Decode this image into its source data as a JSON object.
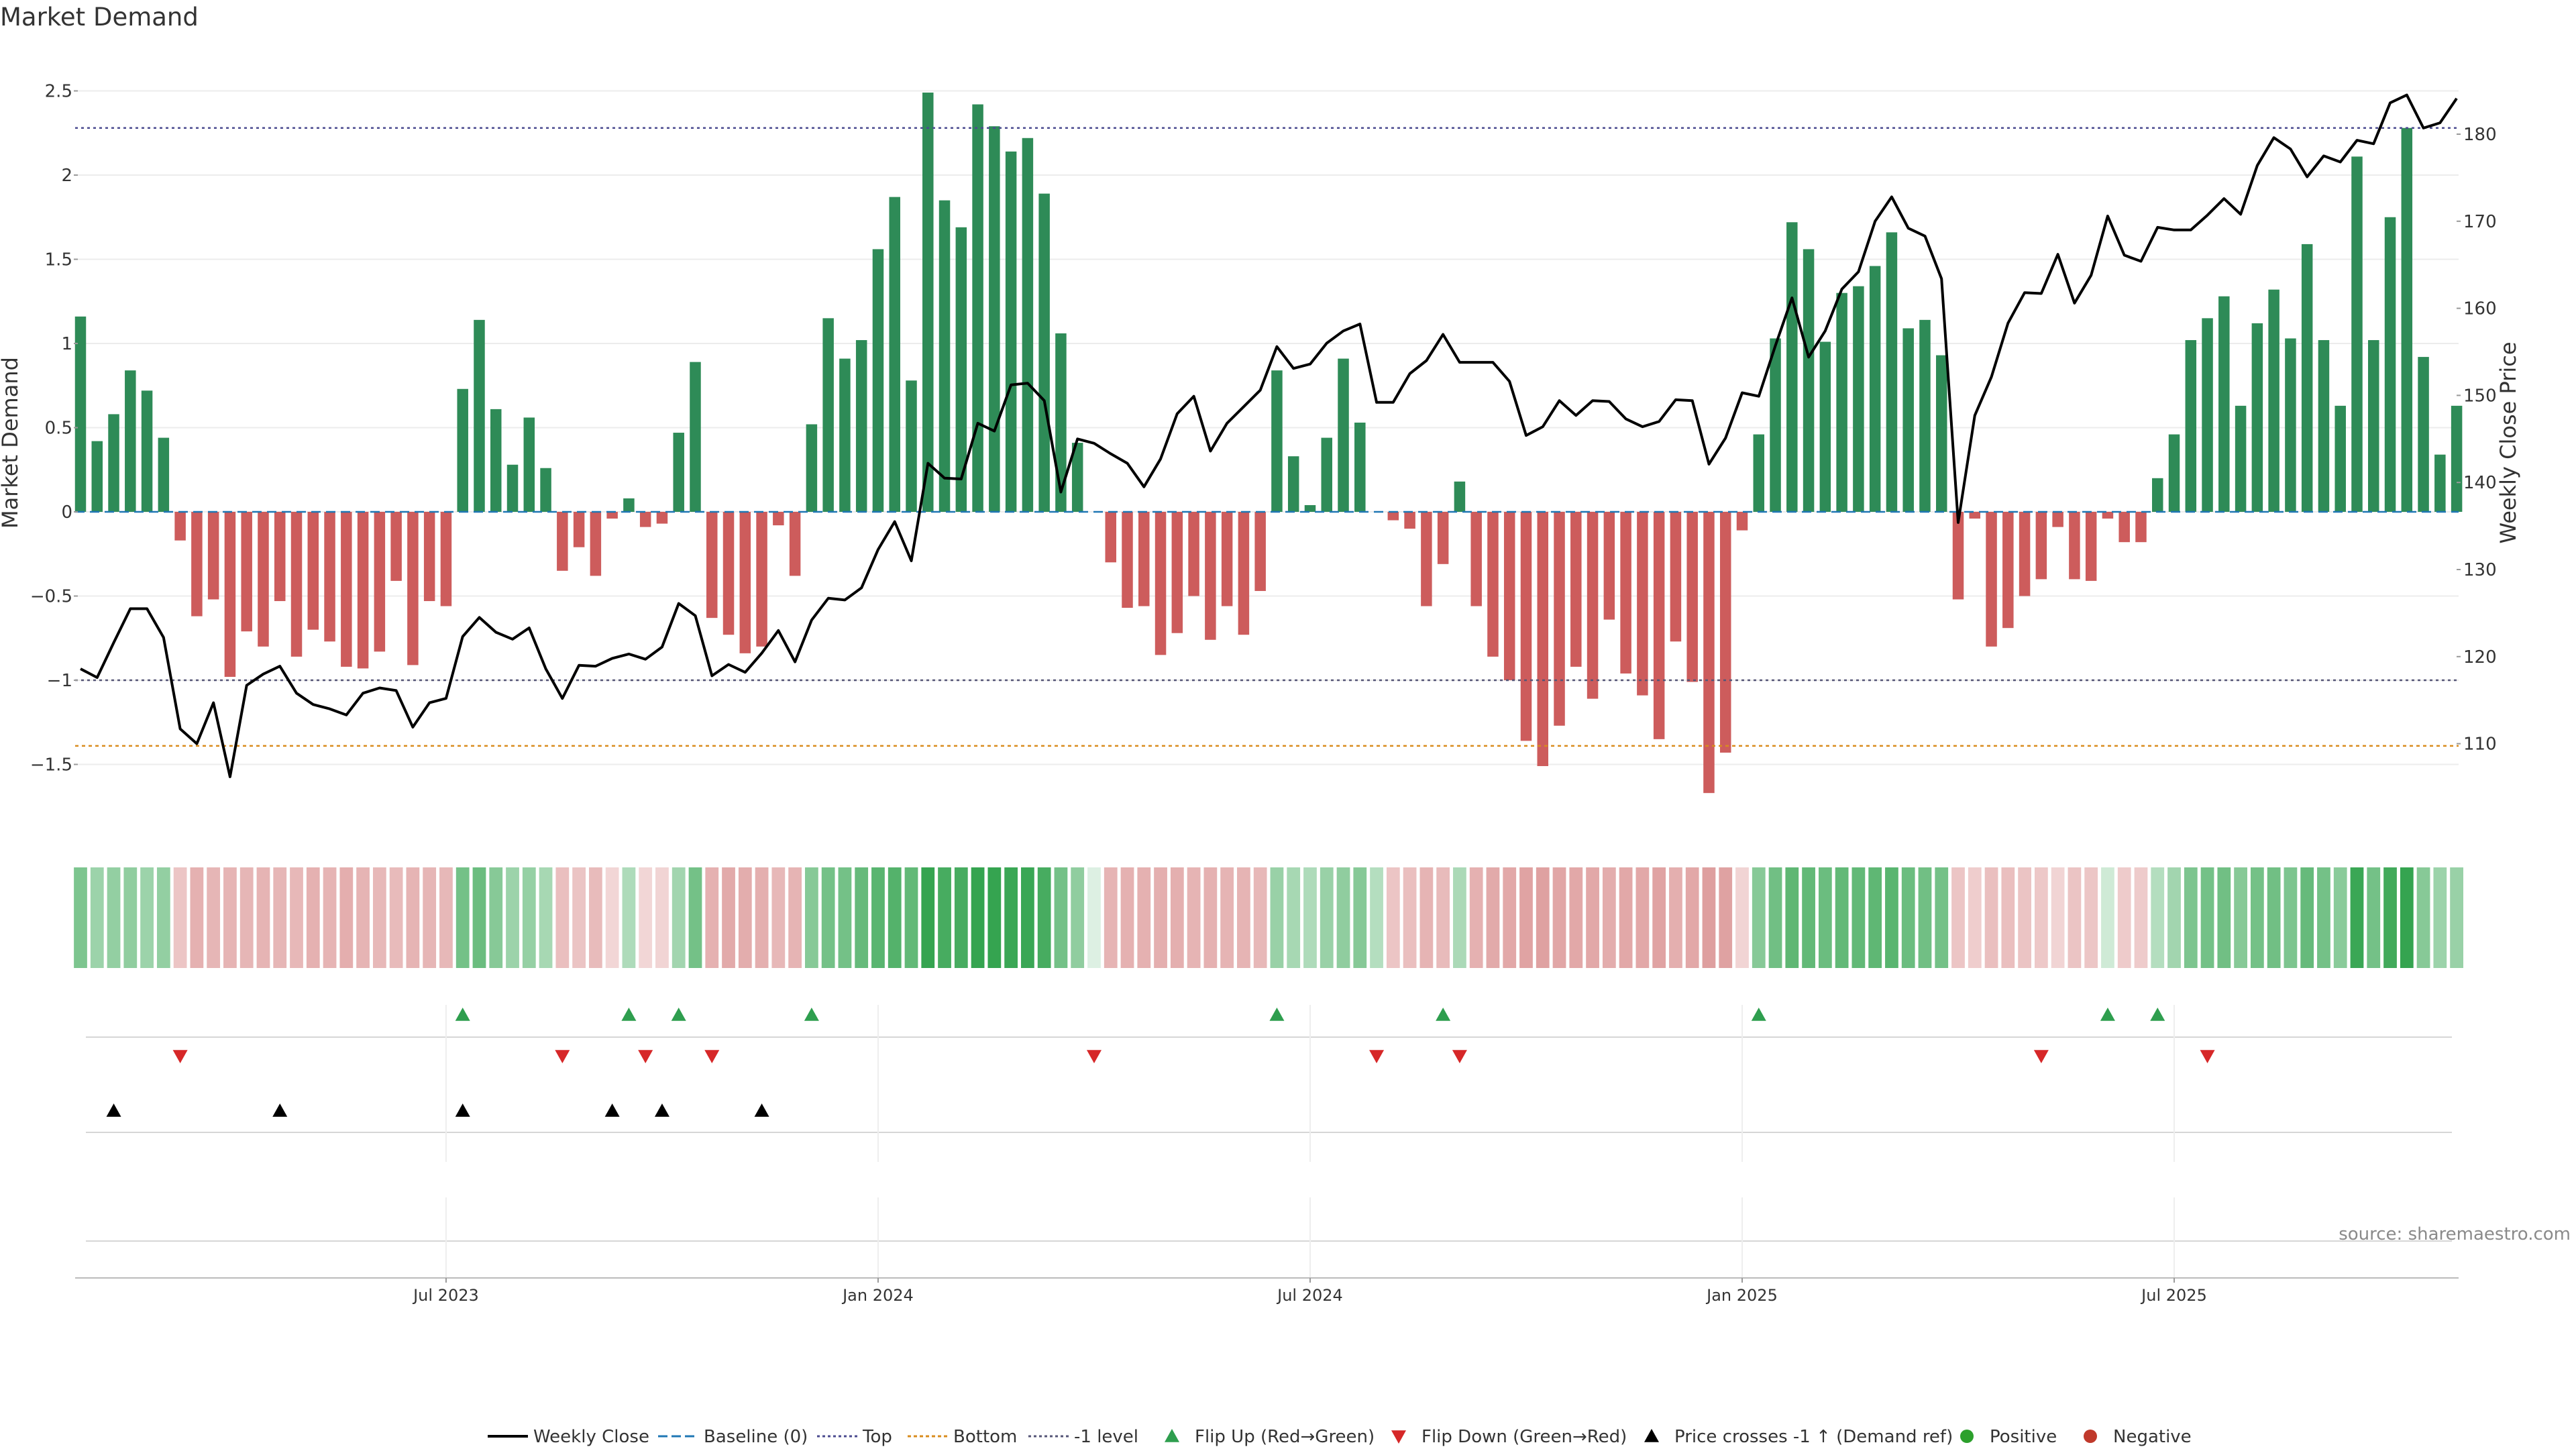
{
  "chart_data": {
    "type": "bar",
    "title": "Market Demand",
    "ylabel_left": "Market Demand",
    "ylabel_right": "Weekly Close Price",
    "ylim_left": [
      -1.9,
      2.6
    ],
    "ylim_right": [
      104.5,
      187.5
    ],
    "yticks_left": [
      "2.5",
      "2",
      "1.5",
      "1",
      "0.5",
      "0",
      "−0.5",
      "−1",
      "−1.5"
    ],
    "ytick_values_left": [
      2.5,
      2,
      1.5,
      1,
      0.5,
      0,
      -0.5,
      -1,
      -1.5
    ],
    "yticks_right": [
      "180",
      "170",
      "160",
      "150",
      "140",
      "130",
      "120",
      "110"
    ],
    "ytick_values_right": [
      180,
      170,
      160,
      150,
      140,
      130,
      120,
      110
    ],
    "x_tick_labels": [
      "Jul 2023",
      "Jan 2024",
      "Jul 2024",
      "Jan 2025",
      "Jul 2025"
    ],
    "x_tick_weeks": [
      22,
      48,
      74,
      100,
      126
    ],
    "reference_levels": {
      "top": 2.28,
      "bottom": -1.39,
      "minus_one": -1.0,
      "baseline": 0
    },
    "demand": [
      1.16,
      0.42,
      0.58,
      0.84,
      0.72,
      0.44,
      -0.17,
      -0.62,
      -0.52,
      -0.98,
      -0.71,
      -0.8,
      -0.53,
      -0.86,
      -0.7,
      -0.77,
      -0.92,
      -0.93,
      -0.83,
      -0.41,
      -0.91,
      -0.53,
      -0.56,
      0.73,
      1.14,
      0.61,
      0.28,
      0.56,
      0.26,
      -0.35,
      -0.21,
      -0.38,
      -0.04,
      0.08,
      -0.09,
      -0.07,
      0.47,
      0.89,
      -0.63,
      -0.73,
      -0.84,
      -0.8,
      -0.08,
      -0.38,
      0.52,
      1.15,
      0.91,
      1.02,
      1.56,
      1.87,
      0.78,
      2.49,
      1.85,
      1.69,
      2.42,
      2.29,
      2.14,
      2.22,
      1.89,
      1.06,
      0.41,
      0.0,
      -0.3,
      -0.57,
      -0.56,
      -0.85,
      -0.72,
      -0.5,
      -0.76,
      -0.56,
      -0.73,
      -0.47,
      0.84,
      0.33,
      0.04,
      0.44,
      0.91,
      0.53,
      0.0,
      -0.05,
      -0.1,
      -0.56,
      -0.31,
      0.18,
      -0.56,
      -0.86,
      -1.0,
      -1.36,
      -1.51,
      -1.27,
      -0.92,
      -1.11,
      -0.64,
      -0.96,
      -1.09,
      -1.35,
      -0.77,
      -1.01,
      -1.67,
      -1.43,
      -0.11,
      0.46,
      1.03,
      1.72,
      1.56,
      1.01,
      1.3,
      1.34,
      1.46,
      1.66,
      1.09,
      1.14,
      0.93,
      -0.52,
      -0.04,
      -0.8,
      -0.69,
      -0.5,
      -0.4,
      -0.09,
      -0.4,
      -0.41,
      -0.04,
      -0.18,
      -0.18,
      0.2,
      0.46,
      1.02,
      1.15,
      1.28,
      0.63,
      1.12,
      1.32,
      1.03,
      1.59,
      1.02,
      0.63,
      2.11,
      1.02,
      1.75,
      2.28,
      0.92,
      0.34,
      0.63
    ],
    "weekly_close": [
      118.6,
      117.6,
      121.6,
      125.5,
      125.5,
      122.2,
      111.7,
      110.0,
      114.7,
      106.2,
      116.7,
      118.0,
      118.9,
      115.8,
      114.5,
      114.0,
      113.3,
      115.8,
      116.4,
      116.1,
      111.9,
      114.7,
      115.2,
      122.3,
      124.5,
      122.8,
      122.0,
      123.3,
      118.6,
      115.2,
      119.0,
      118.9,
      119.8,
      120.3,
      119.7,
      121.1,
      126.1,
      124.7,
      117.8,
      119.1,
      118.2,
      120.4,
      123.0,
      119.4,
      124.2,
      126.7,
      126.5,
      127.9,
      132.3,
      135.5,
      131.0,
      142.2,
      140.5,
      140.4,
      146.8,
      145.9,
      151.2,
      151.4,
      149.4,
      138.9,
      145.0,
      144.5,
      143.3,
      142.2,
      139.5,
      142.7,
      147.9,
      149.9,
      143.6,
      146.8,
      148.7,
      150.6,
      155.6,
      153.1,
      153.6,
      156.0,
      157.4,
      158.2,
      149.2,
      149.2,
      152.5,
      154.0,
      157.0,
      153.8,
      153.8,
      153.8,
      151.6,
      145.4,
      146.4,
      149.4,
      147.7,
      149.4,
      149.3,
      147.3,
      146.4,
      147.0,
      149.5,
      149.4,
      142.1,
      145.1,
      150.3,
      149.9,
      155.7,
      161.2,
      154.4,
      157.4,
      162.2,
      164.2,
      170.0,
      172.8,
      169.2,
      168.3,
      163.4,
      135.4,
      147.7,
      152.1,
      158.3,
      161.8,
      161.7,
      166.2,
      160.6,
      163.8,
      170.6,
      166.1,
      165.4,
      169.3,
      169.0,
      169.0,
      170.7,
      172.6,
      170.8,
      176.4,
      179.6,
      178.3,
      175.1,
      177.5,
      176.8,
      179.3,
      178.9,
      183.6,
      184.5,
      180.7,
      181.3,
      184.1
    ],
    "heat_strip": [
      0.55,
      0.38,
      0.43,
      0.45,
      0.38,
      0.43,
      -0.25,
      -0.42,
      -0.38,
      -0.4,
      -0.38,
      -0.4,
      -0.38,
      -0.36,
      -0.42,
      -0.4,
      -0.45,
      -0.4,
      -0.36,
      -0.34,
      -0.4,
      -0.38,
      -0.36,
      0.6,
      0.65,
      0.5,
      0.38,
      0.42,
      0.32,
      -0.3,
      -0.26,
      -0.34,
      -0.1,
      0.28,
      -0.1,
      -0.12,
      0.35,
      0.6,
      -0.42,
      -0.48,
      -0.46,
      -0.44,
      -0.36,
      -0.4,
      0.5,
      0.6,
      0.6,
      0.68,
      0.75,
      0.78,
      0.7,
      0.95,
      0.85,
      0.85,
      0.95,
      0.95,
      0.92,
      0.92,
      0.85,
      0.6,
      0.45,
      0.02,
      -0.4,
      -0.42,
      -0.42,
      -0.44,
      -0.44,
      -0.4,
      -0.42,
      -0.4,
      -0.4,
      -0.36,
      0.4,
      0.32,
      0.28,
      0.4,
      0.45,
      0.5,
      0.25,
      -0.25,
      -0.3,
      -0.4,
      -0.34,
      0.3,
      -0.42,
      -0.48,
      -0.5,
      -0.54,
      -0.56,
      -0.52,
      -0.5,
      -0.5,
      -0.46,
      -0.5,
      -0.5,
      -0.54,
      -0.44,
      -0.5,
      -0.58,
      -0.55,
      -0.12,
      0.5,
      0.62,
      0.72,
      0.7,
      0.65,
      0.7,
      0.7,
      0.72,
      0.75,
      0.65,
      0.62,
      0.6,
      -0.25,
      -0.18,
      -0.3,
      -0.3,
      -0.26,
      -0.22,
      -0.12,
      -0.26,
      -0.24,
      0.1,
      -0.2,
      -0.2,
      0.25,
      0.35,
      0.55,
      0.6,
      0.62,
      0.5,
      0.6,
      0.62,
      0.55,
      0.68,
      0.6,
      0.48,
      0.92,
      0.6,
      0.88,
      0.95,
      0.5,
      0.38,
      0.4
    ],
    "flip_up_weeks": [
      23,
      33,
      36,
      44,
      72,
      82,
      101,
      122,
      125
    ],
    "flip_down_weeks": [
      6,
      29,
      34,
      38,
      61,
      78,
      83,
      118,
      128
    ],
    "price_cross_weeks": [
      2,
      12,
      23,
      32,
      35,
      41
    ],
    "legend": [
      "Weekly Close",
      "Baseline (0)",
      "Top",
      "Bottom",
      "-1 level",
      "Flip Up (Red→Green)",
      "Flip Down (Green→Red)",
      "Price crosses -1 ↑ (Demand ref)",
      "Positive",
      "Negative"
    ],
    "colors": {
      "positive_bar": "#2e8b57",
      "negative_bar": "#cd5c5c",
      "price_line": "#000000",
      "baseline": "#1f77b4",
      "top": "#4b4b8f",
      "bottom": "#d98c1e",
      "minus_one": "#555577",
      "flip_up": "#2e9e4e",
      "flip_down": "#d62728",
      "cross": "#000000",
      "positive_dot": "#2ca02c",
      "negative_dot": "#c0392b"
    }
  },
  "source_note": "source: sharemaestro.com"
}
